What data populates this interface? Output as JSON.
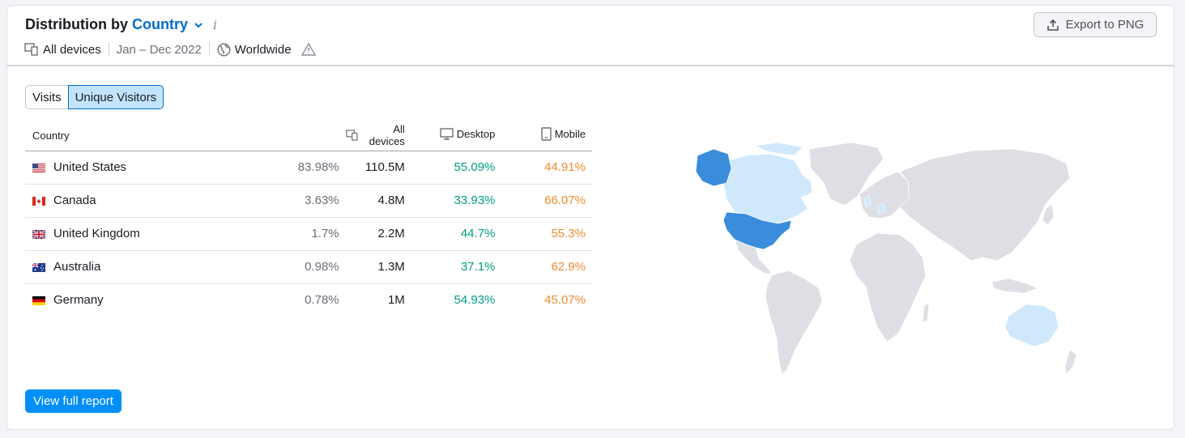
{
  "widget": {
    "title_prefix": "Distribution by",
    "title_dimension": "Country",
    "info_icon": "info-icon",
    "export_label": "Export to PNG"
  },
  "filters": {
    "devices": "All devices",
    "period": "Jan – Dec 2022",
    "region": "Worldwide"
  },
  "toggle": {
    "options": [
      "Visits",
      "Unique Visitors"
    ],
    "selected": "Unique Visitors"
  },
  "table": {
    "headers": {
      "country": "Country",
      "all_devices": "All devices",
      "desktop": "Desktop",
      "mobile": "Mobile"
    },
    "rows": [
      {
        "country": "United States",
        "flag": "us-flag-icon",
        "share": "83.98%",
        "all_devices": "110.5M",
        "desktop": "55.09%",
        "mobile": "44.91%"
      },
      {
        "country": "Canada",
        "flag": "ca-flag-icon",
        "share": "3.63%",
        "all_devices": "4.8M",
        "desktop": "33.93%",
        "mobile": "66.07%"
      },
      {
        "country": "United Kingdom",
        "flag": "gb-flag-icon",
        "share": "1.7%",
        "all_devices": "2.2M",
        "desktop": "44.7%",
        "mobile": "55.3%"
      },
      {
        "country": "Australia",
        "flag": "au-flag-icon",
        "share": "0.98%",
        "all_devices": "1.3M",
        "desktop": "37.1%",
        "mobile": "62.9%"
      },
      {
        "country": "Germany",
        "flag": "de-flag-icon",
        "share": "0.78%",
        "all_devices": "1M",
        "desktop": "54.93%",
        "mobile": "45.07%"
      }
    ]
  },
  "footer": {
    "view_full_report": "View full report"
  },
  "colors": {
    "accent": "#006dca",
    "primary_button": "#008ff8",
    "desktop": "#009f81",
    "mobile": "#ef8a2f",
    "map_high": "#3a8ddb",
    "map_low": "#cfe8fc",
    "map_none": "#dedfe5"
  }
}
